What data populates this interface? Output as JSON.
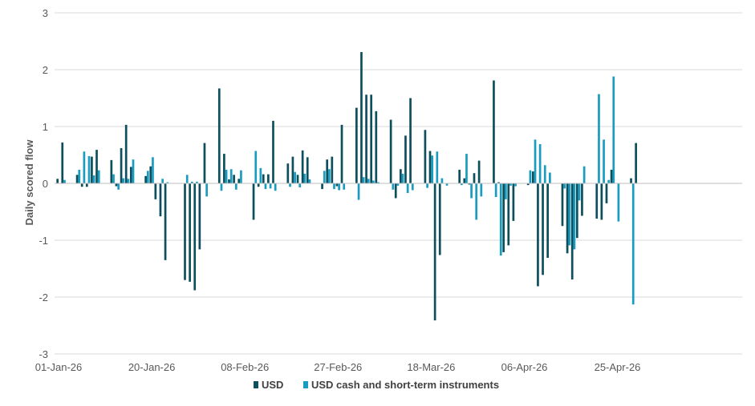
{
  "chart_data": {
    "type": "bar",
    "title": "",
    "xlabel": "",
    "ylabel": "Daily scored flow",
    "ylim": [
      -3,
      3
    ],
    "yticks": [
      -3,
      -2,
      -1,
      0,
      1,
      2,
      3
    ],
    "grid": true,
    "legend_position": "bottom",
    "x_tick_labels": [
      {
        "index": 0,
        "label": "01-Jan-26"
      },
      {
        "index": 19,
        "label": "20-Jan-26"
      },
      {
        "index": 38,
        "label": "08-Feb-26"
      },
      {
        "index": 57,
        "label": "27-Feb-26"
      },
      {
        "index": 76,
        "label": "18-Mar-26"
      },
      {
        "index": 95,
        "label": "06-Apr-26"
      },
      {
        "index": 114,
        "label": "25-Apr-26"
      }
    ],
    "colors": {
      "usd": "#0d4f5c",
      "cash": "#1a9cc0",
      "grid": "#d9d9d9",
      "axis": "#bfbfbf"
    },
    "series": [
      {
        "name": "USD",
        "color": "#0d4f5c",
        "values": [
          0.08,
          0.72,
          0,
          0,
          0.15,
          -0.06,
          -0.06,
          0.47,
          0.59,
          0,
          0,
          0.41,
          -0.05,
          0.62,
          1.03,
          0.29,
          0,
          0,
          0.13,
          0.3,
          -0.28,
          -0.58,
          -1.35,
          0,
          0,
          0,
          -1.7,
          -1.73,
          -1.88,
          -1.16,
          0.71,
          0,
          0,
          1.67,
          0.52,
          0.07,
          0.15,
          0.08,
          0,
          0,
          -0.64,
          -0.06,
          0.16,
          0.16,
          1.1,
          0,
          0,
          0.35,
          0.47,
          0.15,
          0.58,
          0.46,
          0,
          0,
          -0.1,
          0.42,
          0.47,
          -0.05,
          1.03,
          0,
          0,
          1.33,
          2.31,
          1.56,
          1.56,
          1.27,
          0,
          0,
          1.12,
          -0.26,
          0.25,
          0.84,
          1.5,
          0,
          0,
          0.94,
          0.57,
          -2.41,
          -1.26,
          0,
          0,
          0,
          0.24,
          0.09,
          -0.02,
          0.18,
          0.4,
          0,
          0,
          1.81,
          0.02,
          -1.21,
          -1.09,
          -0.66,
          0,
          0,
          -0.03,
          0.21,
          -1.81,
          -1.61,
          -1.31,
          0,
          0,
          -0.75,
          -1.23,
          -1.69,
          -0.96,
          -0.57,
          0,
          0,
          -0.62,
          -0.64,
          -0.35,
          0.24,
          0,
          0,
          0,
          0.09,
          0.71
        ]
      },
      {
        "name": "USD cash and short-term instruments",
        "color": "#1a9cc0",
        "values": [
          0,
          0.06,
          0,
          0,
          0.24,
          0.56,
          0.48,
          0.14,
          0.23,
          0,
          0,
          0.16,
          -0.11,
          0.09,
          0.08,
          0.42,
          0,
          0,
          0.22,
          0.46,
          0,
          0.08,
          0.02,
          0,
          0,
          0,
          0.15,
          0.03,
          0.03,
          0,
          -0.23,
          0,
          0,
          -0.13,
          0.24,
          0.25,
          -0.11,
          0.23,
          0,
          0,
          0.57,
          0.27,
          -0.1,
          -0.09,
          -0.13,
          0,
          0,
          -0.06,
          0.2,
          -0.07,
          0.17,
          0.07,
          0,
          0,
          0.22,
          0.25,
          -0.1,
          -0.12,
          -0.11,
          0,
          0,
          -0.29,
          0.11,
          0.08,
          0.05,
          0.02,
          0,
          0,
          -0.11,
          -0.04,
          0.17,
          -0.17,
          -0.12,
          0,
          0,
          -0.08,
          0.49,
          0.56,
          0.09,
          -0.04,
          0,
          0,
          -0.03,
          0.52,
          -0.26,
          -0.64,
          -0.23,
          0,
          0,
          -0.24,
          -1.27,
          -0.28,
          -0.04,
          -0.05,
          0,
          0,
          0.23,
          0.77,
          0.69,
          0.32,
          0.19,
          0,
          0,
          -0.09,
          -1.09,
          -1.16,
          -0.3,
          0.3,
          0,
          0,
          1.57,
          0.77,
          0.06,
          1.88,
          -0.67,
          0,
          0,
          -2.13,
          0
        ]
      }
    ]
  }
}
